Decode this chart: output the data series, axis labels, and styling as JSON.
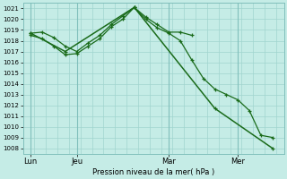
{
  "xlabel": "Pression niveau de la mer( hPa )",
  "ylim": [
    1007.5,
    1021.5
  ],
  "yticks": [
    1008,
    1009,
    1010,
    1011,
    1012,
    1013,
    1014,
    1015,
    1016,
    1017,
    1018,
    1019,
    1020,
    1021
  ],
  "background_color": "#c5ece6",
  "grid_color": "#a0d4ce",
  "line_color": "#1a6b1a",
  "day_labels": [
    "Lun",
    "Jeu",
    "Mar",
    "Mer"
  ],
  "day_positions": [
    0,
    24,
    72,
    108
  ],
  "xlim": [
    -4,
    132
  ],
  "line1_x": [
    0,
    6,
    12,
    18,
    24,
    30,
    36,
    42,
    48,
    54,
    60,
    66,
    72,
    78,
    84
  ],
  "line1_y": [
    1018.7,
    1018.8,
    1018.3,
    1017.5,
    1017.0,
    1017.8,
    1018.5,
    1019.5,
    1020.3,
    1021.1,
    1020.2,
    1019.5,
    1018.8,
    1018.8,
    1018.5
  ],
  "line2_x": [
    0,
    6,
    12,
    18,
    24,
    30,
    36,
    42,
    48,
    54,
    60,
    66,
    72,
    78,
    84,
    90,
    96,
    102,
    108,
    114,
    120,
    126
  ],
  "line2_y": [
    1018.5,
    1018.2,
    1017.5,
    1016.7,
    1016.8,
    1017.5,
    1018.2,
    1019.3,
    1020.0,
    1021.1,
    1020.0,
    1019.2,
    1018.7,
    1018.0,
    1016.2,
    1014.5,
    1013.5,
    1013.0,
    1012.5,
    1011.5,
    1009.2,
    1009.0
  ],
  "line3_x": [
    0,
    18,
    54,
    96,
    126
  ],
  "line3_y": [
    1018.7,
    1017.0,
    1021.1,
    1011.7,
    1008.0
  ]
}
